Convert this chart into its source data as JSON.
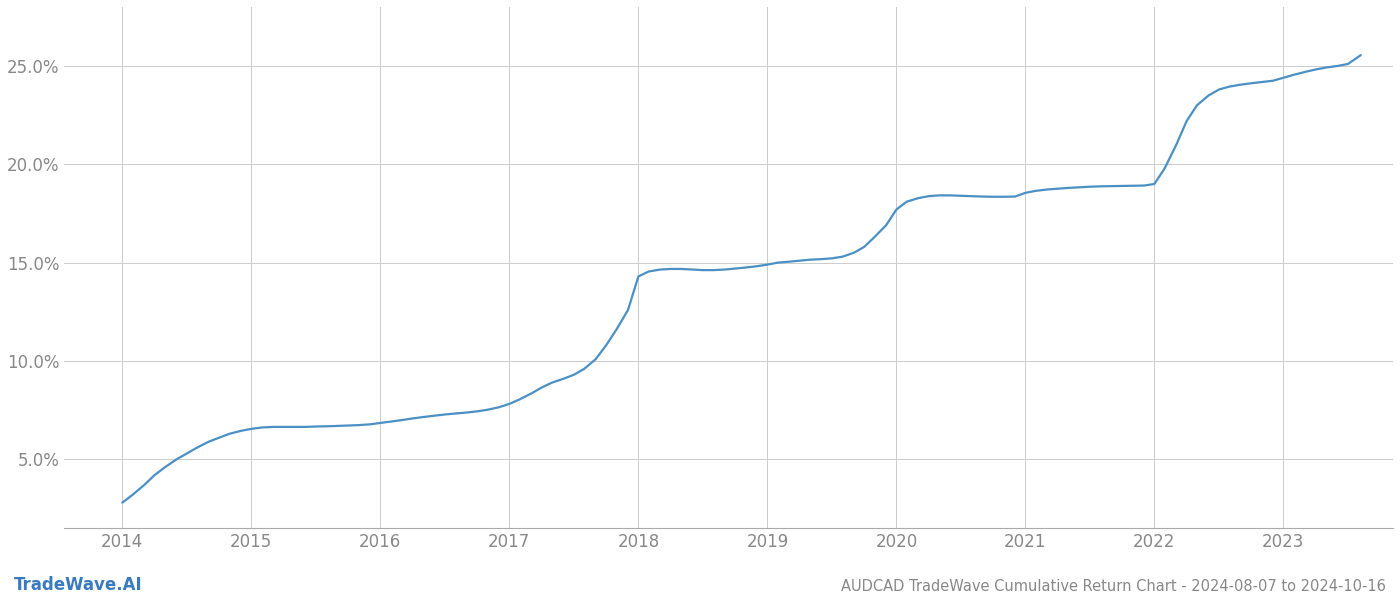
{
  "title": "AUDCAD TradeWave Cumulative Return Chart - 2024-08-07 to 2024-10-16",
  "watermark": "TradeWave.AI",
  "line_color": "#4a90c4",
  "background_color": "#ffffff",
  "grid_color": "#cccccc",
  "x_years": [
    2014,
    2015,
    2016,
    2017,
    2018,
    2019,
    2020,
    2021,
    2022,
    2023
  ],
  "y_ticks": [
    5.0,
    10.0,
    15.0,
    20.0,
    25.0
  ],
  "xlim": [
    2013.55,
    2023.85
  ],
  "ylim": [
    1.5,
    28.0
  ],
  "data_x": [
    2014.0,
    2014.08,
    2014.17,
    2014.25,
    2014.33,
    2014.42,
    2014.5,
    2014.58,
    2014.67,
    2014.75,
    2014.83,
    2014.92,
    2015.0,
    2015.08,
    2015.17,
    2015.25,
    2015.33,
    2015.42,
    2015.5,
    2015.58,
    2015.67,
    2015.75,
    2015.83,
    2015.92,
    2016.0,
    2016.08,
    2016.17,
    2016.25,
    2016.33,
    2016.42,
    2016.5,
    2016.58,
    2016.67,
    2016.75,
    2016.83,
    2016.92,
    2017.0,
    2017.08,
    2017.17,
    2017.25,
    2017.33,
    2017.42,
    2017.5,
    2017.58,
    2017.67,
    2017.75,
    2017.83,
    2017.92,
    2018.0,
    2018.08,
    2018.17,
    2018.25,
    2018.33,
    2018.42,
    2018.5,
    2018.58,
    2018.67,
    2018.75,
    2018.83,
    2018.92,
    2019.0,
    2019.08,
    2019.17,
    2019.25,
    2019.33,
    2019.42,
    2019.5,
    2019.58,
    2019.67,
    2019.75,
    2019.83,
    2019.92,
    2020.0,
    2020.08,
    2020.17,
    2020.25,
    2020.33,
    2020.42,
    2020.5,
    2020.58,
    2020.67,
    2020.75,
    2020.83,
    2020.92,
    2021.0,
    2021.08,
    2021.17,
    2021.25,
    2021.33,
    2021.42,
    2021.5,
    2021.58,
    2021.67,
    2021.75,
    2021.83,
    2021.92,
    2022.0,
    2022.08,
    2022.17,
    2022.25,
    2022.33,
    2022.42,
    2022.5,
    2022.58,
    2022.67,
    2022.75,
    2022.83,
    2022.92,
    2023.0,
    2023.08,
    2023.17,
    2023.25,
    2023.33,
    2023.42,
    2023.5,
    2023.6
  ],
  "data_y": [
    2.8,
    3.2,
    3.7,
    4.2,
    4.6,
    5.0,
    5.3,
    5.6,
    5.9,
    6.1,
    6.3,
    6.45,
    6.55,
    6.62,
    6.65,
    6.65,
    6.65,
    6.65,
    6.67,
    6.68,
    6.7,
    6.72,
    6.74,
    6.78,
    6.85,
    6.92,
    7.0,
    7.08,
    7.15,
    7.22,
    7.28,
    7.33,
    7.38,
    7.44,
    7.52,
    7.65,
    7.82,
    8.05,
    8.35,
    8.65,
    8.9,
    9.1,
    9.3,
    9.6,
    10.1,
    10.8,
    11.6,
    12.6,
    14.3,
    14.55,
    14.65,
    14.68,
    14.68,
    14.65,
    14.62,
    14.62,
    14.65,
    14.7,
    14.75,
    14.82,
    14.9,
    15.0,
    15.05,
    15.1,
    15.15,
    15.18,
    15.22,
    15.3,
    15.5,
    15.8,
    16.3,
    16.9,
    17.7,
    18.1,
    18.28,
    18.38,
    18.42,
    18.42,
    18.4,
    18.38,
    18.36,
    18.35,
    18.35,
    18.36,
    18.55,
    18.65,
    18.72,
    18.76,
    18.8,
    18.83,
    18.86,
    18.88,
    18.89,
    18.9,
    18.91,
    18.92,
    19.0,
    19.8,
    21.0,
    22.2,
    23.0,
    23.5,
    23.8,
    23.95,
    24.05,
    24.12,
    24.18,
    24.25,
    24.4,
    24.55,
    24.7,
    24.82,
    24.92,
    25.0,
    25.1,
    25.55
  ],
  "title_fontsize": 10.5,
  "tick_fontsize": 12,
  "watermark_fontsize": 12,
  "line_width": 1.6
}
